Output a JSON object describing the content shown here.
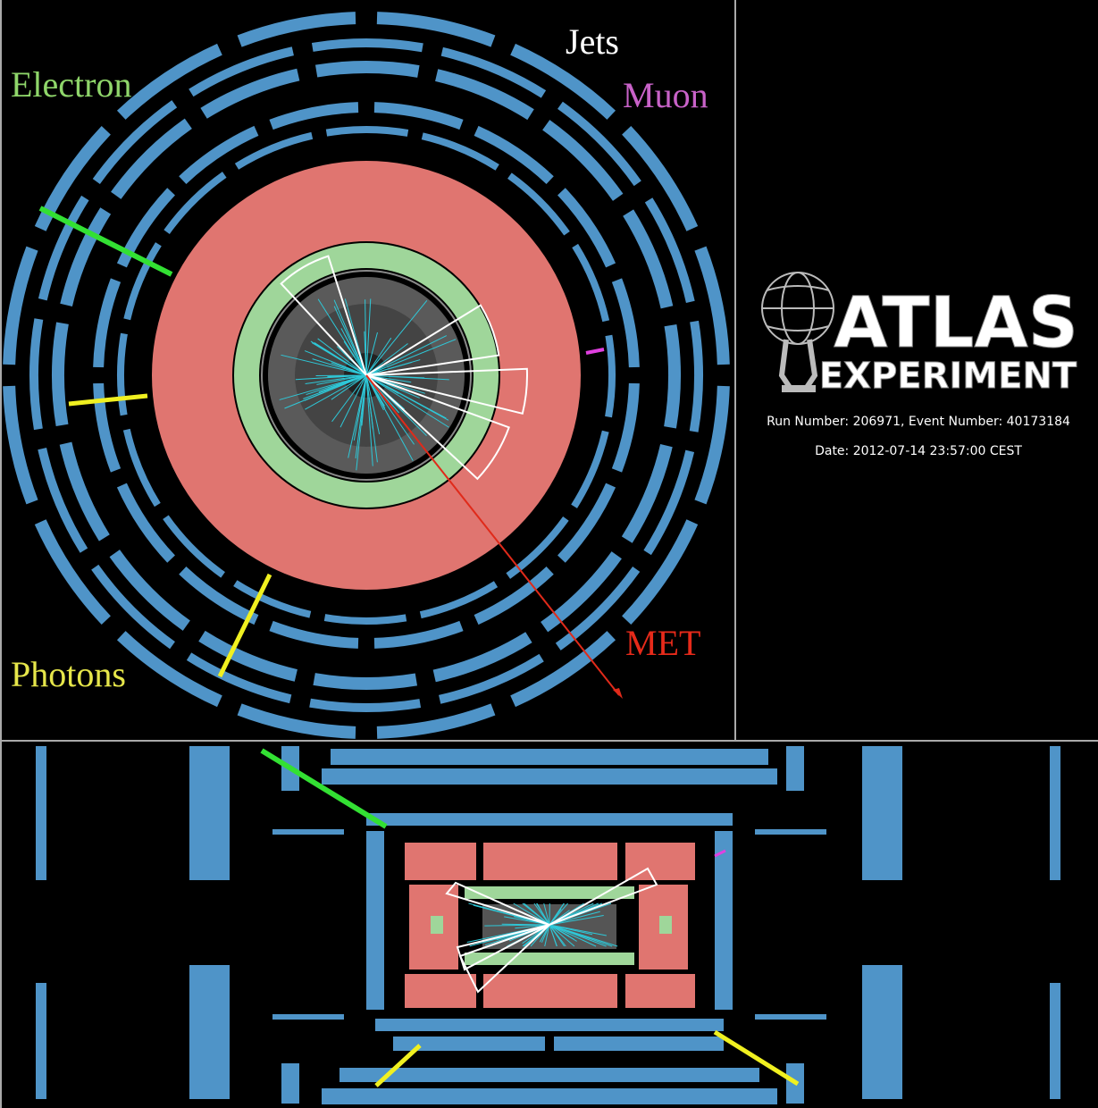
{
  "labels": {
    "jets": "Jets",
    "electron": "Electron",
    "muon": "Muon",
    "photons": "Photons",
    "met": "MET"
  },
  "logo": {
    "title": "ATLAS",
    "subtitle": "EXPERIMENT"
  },
  "event": {
    "run": "Run Number: 206971, Event Number: 40173184",
    "date": "Date: 2012-07-14 23:57:00 CEST"
  }
}
